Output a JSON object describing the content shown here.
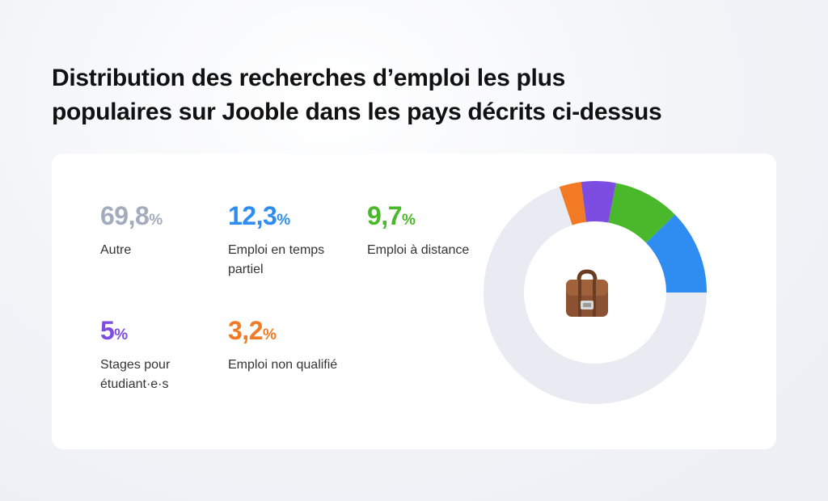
{
  "title": {
    "line1": "Distribution des recherches d’emploi les plus",
    "line2": "populaires sur Jooble dans les pays décrits ci-dessus"
  },
  "icon": "briefcase-icon",
  "chart_data": {
    "type": "pie",
    "style": "donut",
    "categories": [
      "Autre",
      "Emploi en temps partiel",
      "Emploi à distance",
      "Stages pour étudiant·e·s",
      "Emploi non qualifié"
    ],
    "values": [
      69.8,
      12.3,
      9.7,
      5,
      3.2
    ],
    "colors": [
      "#e8ebf1",
      "#2f8df2",
      "#49b82a",
      "#7c4de0",
      "#f27a24"
    ],
    "value_text_colors": [
      "#a2acbd",
      "#2f8df2",
      "#49b82a",
      "#7c4de0",
      "#f27a24"
    ],
    "stats": [
      {
        "value": "69,8",
        "unit": "%",
        "label": "Autre"
      },
      {
        "value": "12,3",
        "unit": "%",
        "label": "Emploi en temps partiel"
      },
      {
        "value": "9,7",
        "unit": "%",
        "label": "Emploi à distance"
      },
      {
        "value": "5",
        "unit": "%",
        "label": "Stages pour étudiant·e·s"
      },
      {
        "value": "3,2",
        "unit": "%",
        "label": "Emploi non qualifié"
      }
    ]
  }
}
